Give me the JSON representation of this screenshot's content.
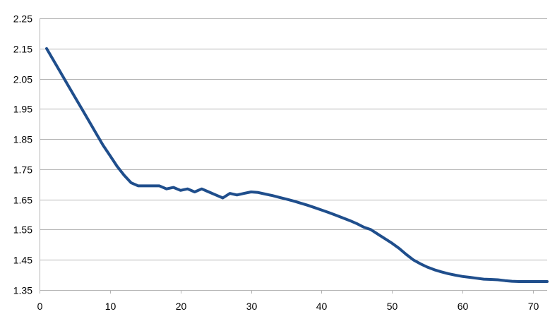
{
  "chart_data": {
    "type": "line",
    "title": "",
    "xlabel": "",
    "ylabel": "",
    "xlim": [
      0,
      72
    ],
    "ylim": [
      1.35,
      2.25
    ],
    "x_ticks": [
      0,
      10,
      20,
      30,
      40,
      50,
      60,
      70
    ],
    "x_tick_labels": [
      "0",
      "10",
      "20",
      "30",
      "40",
      "50",
      "60",
      "70"
    ],
    "y_ticks": [
      1.35,
      1.45,
      1.55,
      1.65,
      1.75,
      1.85,
      1.95,
      2.05,
      2.15,
      2.25
    ],
    "y_tick_labels": [
      "1.35",
      "1.45",
      "1.55",
      "1.65",
      "1.75",
      "1.85",
      "1.95",
      "2.05",
      "2.15",
      "2.25"
    ],
    "grid": "horizontal",
    "legend": "none",
    "colors": {
      "series": "#1f4e8c",
      "grid": "#b3b3b3"
    },
    "series": [
      {
        "x": [
          1,
          2,
          3,
          4,
          5,
          6,
          7,
          8,
          9,
          10,
          11,
          12,
          13,
          14,
          15,
          16,
          17,
          18,
          19,
          20,
          21,
          22,
          23,
          24,
          25,
          26,
          27,
          28,
          29,
          30,
          31,
          32,
          33,
          34,
          35,
          36,
          37,
          38,
          39,
          40,
          41,
          42,
          43,
          44,
          45,
          46,
          47,
          48,
          49,
          50,
          51,
          52,
          53,
          54,
          55,
          56,
          57,
          58,
          59,
          60,
          61,
          62,
          63,
          64,
          65,
          66,
          67,
          68,
          69,
          70,
          71,
          72
        ],
        "y": [
          2.15,
          2.11,
          2.07,
          2.03,
          1.99,
          1.95,
          1.91,
          1.87,
          1.83,
          1.795,
          1.76,
          1.73,
          1.705,
          1.695,
          1.695,
          1.695,
          1.695,
          1.685,
          1.69,
          1.68,
          1.685,
          1.675,
          1.685,
          1.675,
          1.665,
          1.655,
          1.67,
          1.665,
          1.67,
          1.675,
          1.673,
          1.668,
          1.663,
          1.657,
          1.651,
          1.645,
          1.638,
          1.631,
          1.623,
          1.615,
          1.607,
          1.598,
          1.589,
          1.58,
          1.57,
          1.558,
          1.55,
          1.535,
          1.52,
          1.505,
          1.488,
          1.468,
          1.45,
          1.437,
          1.426,
          1.417,
          1.41,
          1.404,
          1.399,
          1.395,
          1.392,
          1.389,
          1.386,
          1.385,
          1.384,
          1.381,
          1.379,
          1.378,
          1.378,
          1.378,
          1.378,
          1.378
        ]
      }
    ]
  }
}
